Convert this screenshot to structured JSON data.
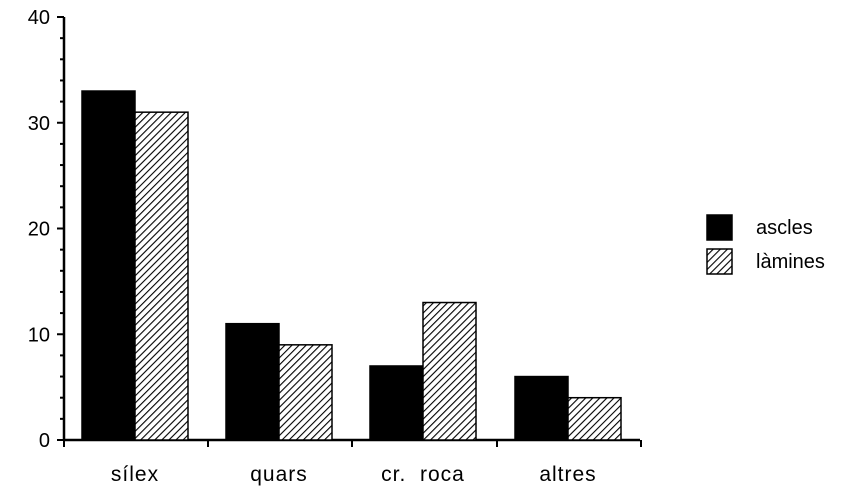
{
  "chart_data": {
    "type": "bar",
    "title": "",
    "xlabel": "",
    "ylabel": "",
    "categories": [
      "sílex",
      "quars",
      "cr.  roca",
      "altres"
    ],
    "series": [
      {
        "name": "ascles",
        "values": [
          33,
          11,
          7,
          6
        ],
        "fill": "solid",
        "color": "#000000"
      },
      {
        "name": "làmines",
        "values": [
          31,
          9,
          13,
          4
        ],
        "fill": "hatched",
        "color": "#000000"
      }
    ],
    "ylim": [
      0,
      40
    ],
    "yticks": [
      0,
      10,
      20,
      30,
      40
    ],
    "ytick_labels": [
      "0",
      "10",
      "20",
      "30",
      "40"
    ],
    "grid": false,
    "legend_position": "right"
  }
}
